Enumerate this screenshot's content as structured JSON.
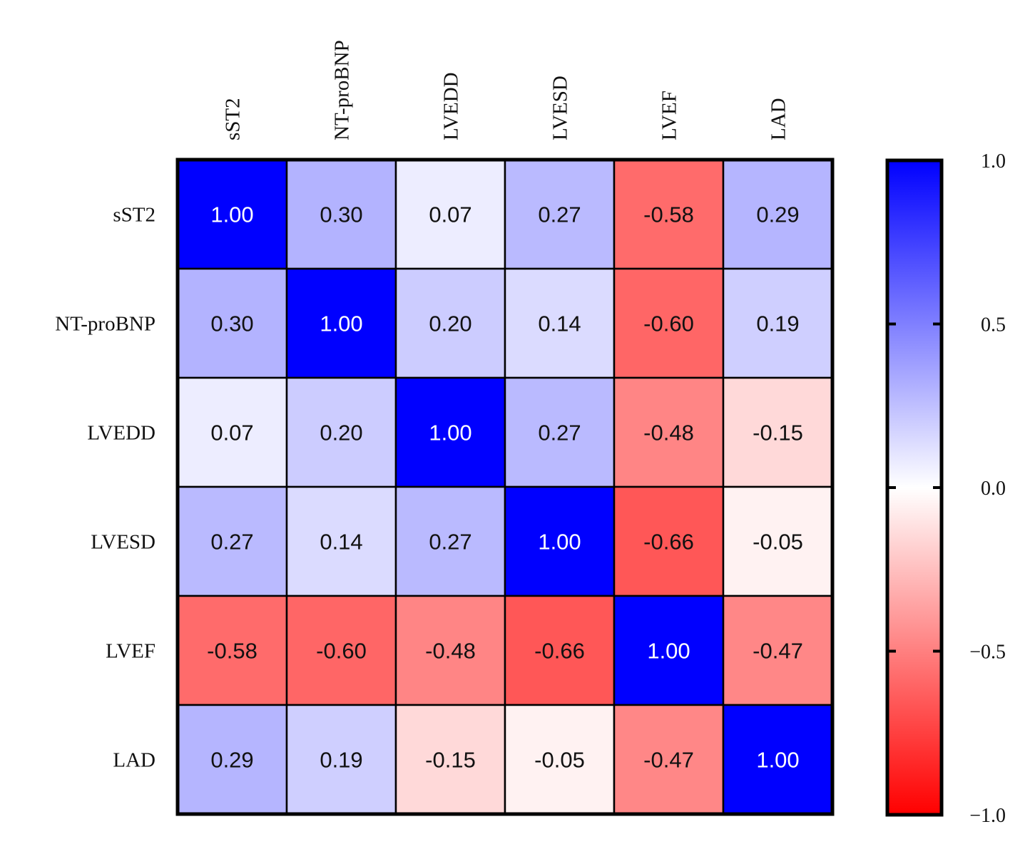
{
  "chart_data": {
    "type": "heatmap",
    "title": "",
    "xlabel": "",
    "ylabel": "",
    "x_categories": [
      "sST2",
      "NT-proBNP",
      "LVEDD",
      "LVESD",
      "LVEF",
      "LAD"
    ],
    "y_categories": [
      "sST2",
      "NT-proBNP",
      "LVEDD",
      "LVESD",
      "LVEF",
      "LAD"
    ],
    "values": [
      [
        1.0,
        0.3,
        0.07,
        0.27,
        -0.58,
        0.29
      ],
      [
        0.3,
        1.0,
        0.2,
        0.14,
        -0.6,
        0.19
      ],
      [
        0.07,
        0.2,
        1.0,
        0.27,
        -0.48,
        -0.15
      ],
      [
        0.27,
        0.14,
        0.27,
        1.0,
        -0.66,
        -0.05
      ],
      [
        -0.58,
        -0.6,
        -0.48,
        -0.66,
        1.0,
        -0.47
      ],
      [
        0.29,
        0.19,
        -0.15,
        -0.05,
        -0.47,
        1.0
      ]
    ],
    "value_labels": [
      [
        "1.00",
        "0.30",
        "0.07",
        "0.27",
        "-0.58",
        "0.29"
      ],
      [
        "0.30",
        "1.00",
        "0.20",
        "0.14",
        "-0.60",
        "0.19"
      ],
      [
        "0.07",
        "0.20",
        "1.00",
        "0.27",
        "-0.48",
        "-0.15"
      ],
      [
        "0.27",
        "0.14",
        "0.27",
        "1.00",
        "-0.66",
        "-0.05"
      ],
      [
        "-0.58",
        "-0.60",
        "-0.48",
        "-0.66",
        "1.00",
        "-0.47"
      ],
      [
        "0.29",
        "0.19",
        "-0.15",
        "-0.05",
        "-0.47",
        "1.00"
      ]
    ],
    "color_scale": {
      "min": -1.0,
      "max": 1.0,
      "min_color": "#ff0000",
      "mid_color": "#ffffff",
      "max_color": "#0000ff",
      "ticks": [
        1.0,
        0.5,
        0.0,
        -0.5,
        -1.0
      ],
      "tick_labels": [
        "1.0",
        "0.5",
        "0.0",
        "−0.5",
        "−1.0"
      ],
      "legend_position": "right"
    },
    "x_label_position": "top",
    "x_label_rotation": "vertical",
    "grid": true
  }
}
